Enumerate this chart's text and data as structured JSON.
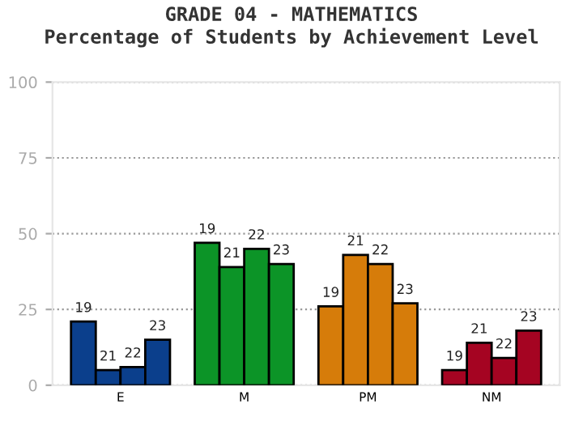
{
  "chart_data": {
    "type": "bar",
    "title": "GRADE 04 - MATHEMATICS\nPercentage of Students by Achievement Level",
    "categories": [
      "E",
      "M",
      "PM",
      "NM"
    ],
    "series": [
      {
        "name": "19",
        "colors": [
          "#0b3f8c",
          "#0c9427",
          "#d67c0a",
          "#a50422"
        ],
        "values": [
          21,
          47,
          26,
          5
        ]
      },
      {
        "name": "21",
        "colors": [
          "#0b3f8c",
          "#0c9427",
          "#d67c0a",
          "#a50422"
        ],
        "values": [
          5,
          39,
          43,
          14
        ]
      },
      {
        "name": "22",
        "colors": [
          "#0b3f8c",
          "#0c9427",
          "#d67c0a",
          "#a50422"
        ],
        "values": [
          6,
          45,
          40,
          9
        ]
      },
      {
        "name": "23",
        "colors": [
          "#0b3f8c",
          "#0c9427",
          "#d67c0a",
          "#a50422"
        ],
        "values": [
          15,
          40,
          27,
          18
        ]
      }
    ],
    "ylim": [
      0,
      100
    ],
    "yticks": [
      0,
      25,
      50,
      75,
      100
    ],
    "grid": "y",
    "legend": false
  }
}
